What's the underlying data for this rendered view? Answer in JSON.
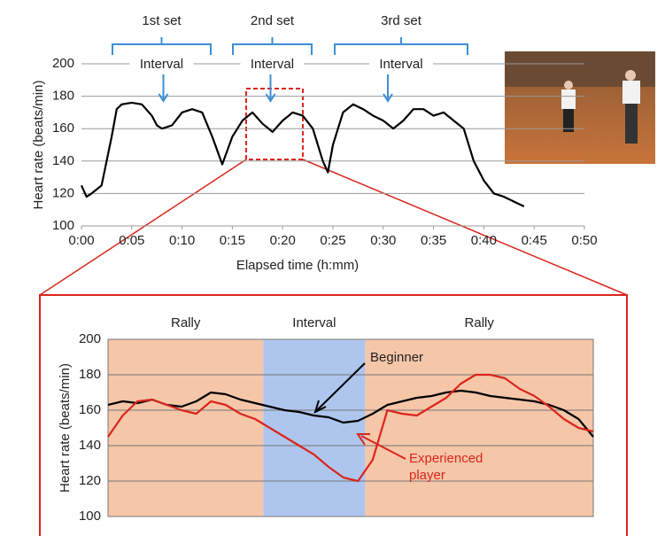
{
  "chart_data": [
    {
      "type": "line",
      "sets": [
        {
          "name": "1st set",
          "label": "Interval"
        },
        {
          "name": "2nd set",
          "label": "Interval"
        },
        {
          "name": "3rd set",
          "label": "Interval"
        }
      ],
      "x_label": "Elapsed time (h:mm)",
      "y_label": "Heart rate (beats/min)",
      "xlim": [
        0,
        50
      ],
      "xticks": [
        {
          "value": 0,
          "label": "0:00"
        },
        {
          "value": 5,
          "label": "0:05"
        },
        {
          "value": 10,
          "label": "0:10"
        },
        {
          "value": 15,
          "label": "0:15"
        },
        {
          "value": 20,
          "label": "0:20"
        },
        {
          "value": 25,
          "label": "0:25"
        },
        {
          "value": 30,
          "label": "0:30"
        },
        {
          "value": 35,
          "label": "0:35"
        },
        {
          "value": 40,
          "label": "0:40"
        },
        {
          "value": 45,
          "label": "0:45"
        },
        {
          "value": 50,
          "label": "0:50"
        }
      ],
      "ylim": [
        100,
        200
      ],
      "yticks": [
        100,
        120,
        140,
        160,
        180,
        200
      ],
      "grid": true,
      "x": [
        0,
        0.5,
        1,
        2,
        2.5,
        3,
        3.5,
        4,
        5,
        6,
        7,
        7.5,
        8,
        9,
        10,
        11,
        12,
        13,
        14,
        15,
        16,
        17,
        18,
        19,
        20,
        21,
        22,
        23,
        24,
        24.5,
        25,
        26,
        27,
        28,
        29,
        30,
        31,
        32,
        33,
        34,
        35,
        36,
        37,
        38,
        39,
        40,
        41,
        42,
        43,
        44
      ],
      "series": [
        {
          "color": "#000000",
          "values": [
            125,
            118,
            120,
            125,
            140,
            155,
            172,
            175,
            176,
            175,
            168,
            162,
            160,
            162,
            170,
            172,
            170,
            155,
            138,
            155,
            165,
            170,
            163,
            158,
            165,
            170,
            168,
            160,
            140,
            133,
            150,
            170,
            175,
            172,
            168,
            165,
            160,
            165,
            172,
            172,
            168,
            170,
            165,
            160,
            140,
            128,
            120,
            118,
            115,
            112
          ]
        }
      ]
    },
    {
      "type": "line",
      "regions": [
        "Rally",
        "Interval",
        "Rally"
      ],
      "y_label": "Heart rate (beats/min)",
      "ylim": [
        100,
        200
      ],
      "yticks": [
        100,
        120,
        140,
        160,
        180,
        200
      ],
      "grid": true,
      "series": [
        {
          "name": "Beginner",
          "color": "#000000",
          "values": [
            163,
            165,
            164,
            166,
            163,
            162,
            165,
            170,
            169,
            166,
            164,
            162,
            160,
            159,
            157,
            156,
            153,
            154,
            158,
            163,
            165,
            167,
            168,
            170,
            171,
            170,
            168,
            167,
            166,
            165,
            163,
            160,
            155,
            145
          ]
        },
        {
          "name": "Experienced player",
          "color": "#d9261c",
          "values": [
            145,
            157,
            165,
            166,
            163,
            160,
            158,
            165,
            163,
            158,
            155,
            150,
            145,
            140,
            135,
            128,
            122,
            120,
            132,
            160,
            158,
            157,
            162,
            167,
            175,
            180,
            180,
            178,
            172,
            168,
            162,
            155,
            150,
            148
          ]
        }
      ]
    }
  ]
}
